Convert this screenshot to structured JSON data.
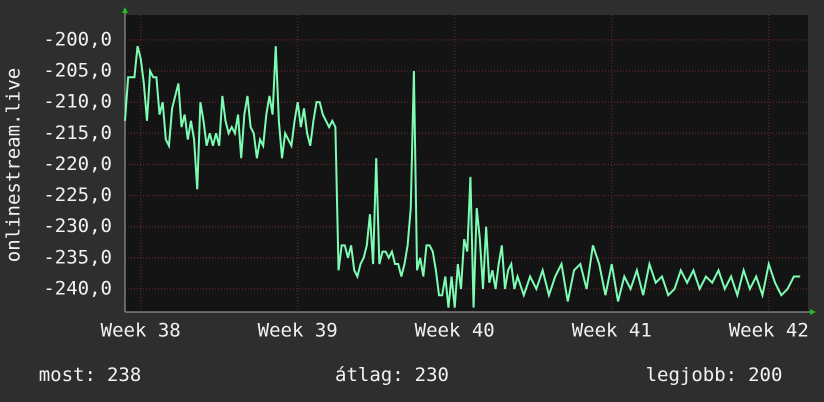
{
  "chart_data": {
    "type": "line",
    "ylabel": "onlinestream.live",
    "x": [
      37.9,
      37.92,
      37.94,
      37.96,
      37.98,
      38.0,
      38.02,
      38.04,
      38.06,
      38.08,
      38.1,
      38.12,
      38.14,
      38.16,
      38.18,
      38.2,
      38.22,
      38.24,
      38.26,
      38.28,
      38.3,
      38.32,
      38.34,
      38.36,
      38.38,
      38.4,
      38.42,
      38.44,
      38.46,
      38.48,
      38.5,
      38.52,
      38.54,
      38.56,
      38.58,
      38.6,
      38.62,
      38.64,
      38.66,
      38.68,
      38.7,
      38.72,
      38.74,
      38.76,
      38.78,
      38.8,
      38.82,
      38.84,
      38.86,
      38.88,
      38.9,
      38.92,
      38.94,
      38.96,
      38.98,
      39.0,
      39.02,
      39.04,
      39.06,
      39.08,
      39.1,
      39.12,
      39.14,
      39.16,
      39.18,
      39.2,
      39.22,
      39.24,
      39.26,
      39.28,
      39.3,
      39.32,
      39.34,
      39.36,
      39.38,
      39.4,
      39.42,
      39.44,
      39.46,
      39.48,
      39.5,
      39.52,
      39.54,
      39.56,
      39.58,
      39.6,
      39.62,
      39.64,
      39.66,
      39.68,
      39.7,
      39.72,
      39.74,
      39.76,
      39.78,
      39.8,
      39.82,
      39.84,
      39.86,
      39.88,
      39.9,
      39.92,
      39.94,
      39.96,
      39.98,
      40.0,
      40.02,
      40.04,
      40.06,
      40.08,
      40.1,
      40.12,
      40.14,
      40.16,
      40.18,
      40.2,
      40.22,
      40.24,
      40.26,
      40.28,
      40.3,
      40.32,
      40.34,
      40.36,
      40.38,
      40.4,
      40.44,
      40.48,
      40.52,
      40.56,
      40.6,
      40.64,
      40.68,
      40.72,
      40.76,
      40.8,
      40.84,
      40.88,
      40.92,
      40.96,
      41.0,
      41.04,
      41.08,
      41.12,
      41.16,
      41.2,
      41.24,
      41.28,
      41.32,
      41.36,
      41.4,
      41.44,
      41.48,
      41.52,
      41.56,
      41.6,
      41.64,
      41.68,
      41.72,
      41.76,
      41.8,
      41.84,
      41.88,
      41.92,
      41.96,
      42.0,
      42.04,
      42.08,
      42.12,
      42.16,
      42.2
    ],
    "series": [
      {
        "color": "#7dfcb4",
        "values": [
          -213,
          -206,
          -206,
          -206,
          -201,
          -203,
          -207,
          -213,
          -205,
          -206,
          -206,
          -212,
          -210,
          -216,
          -217,
          -211,
          -209,
          -207,
          -214,
          -212,
          -216,
          -213,
          -216,
          -224,
          -210,
          -213,
          -217,
          -215,
          -217,
          -215,
          -217,
          -209,
          -213,
          -215,
          -214,
          -215,
          -212,
          -219,
          -212,
          -209,
          -214,
          -215,
          -219,
          -216,
          -217,
          -212,
          -209,
          -212,
          -201,
          -213,
          -219,
          -215,
          -216,
          -217,
          -213,
          -210,
          -214,
          -211,
          -215,
          -217,
          -213,
          -210,
          -210,
          -212,
          -213,
          -214,
          -213,
          -214,
          -237,
          -233,
          -233,
          -235,
          -233,
          -237,
          -238,
          -236,
          -235,
          -233,
          -228,
          -236,
          -219,
          -236,
          -234,
          -234,
          -235,
          -234,
          -236,
          -236,
          -238,
          -236,
          -233,
          -227,
          -205,
          -237,
          -235,
          -238,
          -233,
          -233,
          -234,
          -237,
          -241,
          -241,
          -238,
          -243,
          -238,
          -243,
          -236,
          -240,
          -232,
          -234,
          -222,
          -243,
          -227,
          -232,
          -240,
          -230,
          -239,
          -237,
          -240,
          -236,
          -233,
          -240,
          -237,
          -236,
          -240,
          -238,
          -241,
          -238,
          -240,
          -237,
          -241,
          -238,
          -236,
          -242,
          -237,
          -236,
          -240,
          -233,
          -236,
          -241,
          -236,
          -242,
          -238,
          -240,
          -237,
          -241,
          -236,
          -239,
          -238,
          -241,
          -240,
          -237,
          -239,
          -237,
          -240,
          -238,
          -239,
          -237,
          -240,
          -238,
          -241,
          -237,
          -240,
          -238,
          -241,
          -236,
          -239,
          -241,
          -240,
          -238,
          -238
        ]
      }
    ],
    "xlim": [
      37.9,
      42.25
    ],
    "xticks": [
      {
        "value": 38,
        "label": "Week 38"
      },
      {
        "value": 39,
        "label": "Week 39"
      },
      {
        "value": 40,
        "label": "Week 40"
      },
      {
        "value": 41,
        "label": "Week 41"
      },
      {
        "value": 42,
        "label": "Week 42"
      }
    ],
    "ylim": [
      -243.7,
      -196
    ],
    "yticks": [
      {
        "value": -200,
        "label": "-200,0"
      },
      {
        "value": -205,
        "label": "-205,0"
      },
      {
        "value": -210,
        "label": "-210,0"
      },
      {
        "value": -215,
        "label": "-215,0"
      },
      {
        "value": -220,
        "label": "-220,0"
      },
      {
        "value": -225,
        "label": "-225,0"
      },
      {
        "value": -230,
        "label": "-230,0"
      },
      {
        "value": -235,
        "label": "-235,0"
      },
      {
        "value": -240,
        "label": "-240,0"
      }
    ],
    "grid": true,
    "stats": [
      {
        "label": "most:",
        "value": 238
      },
      {
        "label": "átlag:",
        "value": 230
      },
      {
        "label": "legjobb:",
        "value": 200
      }
    ]
  }
}
